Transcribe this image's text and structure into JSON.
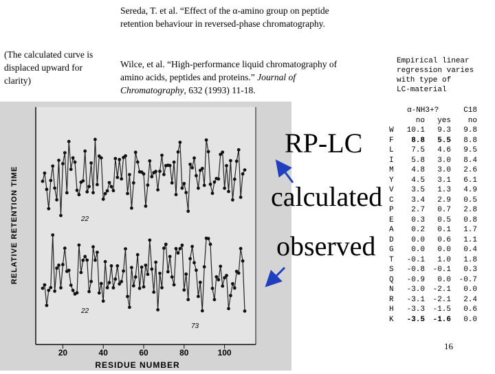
{
  "references": {
    "ref1": "Sereda, T. et al. “Effect of the α-amino group on peptide retention behaviour in reversed-phase chromatography.",
    "ref2_main": "Wilce, et al. “High-performance liquid chromatography of amino acids, peptides and proteins.” ",
    "ref2_journal": "Journal of Chromatography",
    "ref2_tail": ", 632 (1993) 11-18."
  },
  "note": "(The calculated curve is displaced upward for clarity)",
  "plot": {
    "ylabel": "RELATIVE RETENTION TIME",
    "xlabel": "RESIDUE NUMBER",
    "xticks": [
      "20",
      "40",
      "60",
      "80",
      "100"
    ],
    "curve_labels": {
      "upper": "22",
      "lower": "22",
      "trough": "73"
    },
    "background_color": "#d9d9d9"
  },
  "labels": {
    "rplc": "RP-LC",
    "calculated": "calculated",
    "observed": "observed",
    "arrow_color": "#1f3fbf"
  },
  "empirical_note": "Empirical linear\nregression varies\nwith type of\nLC-material",
  "table": {
    "header1": [
      "",
      "α-NH3+?",
      "",
      "C18"
    ],
    "header2": [
      "",
      "no",
      "yes",
      "no"
    ],
    "rows": [
      {
        "aa": "W",
        "no": "10.1",
        "yes": "9.3",
        "c18": "9.8",
        "bold": false
      },
      {
        "aa": "F",
        "no": "8.8",
        "yes": "5.5",
        "c18": "8.8",
        "bold": true
      },
      {
        "aa": "L",
        "no": "7.5",
        "yes": "4.6",
        "c18": "9.5",
        "bold": false
      },
      {
        "aa": "I",
        "no": "5.8",
        "yes": "3.0",
        "c18": "8.4",
        "bold": false
      },
      {
        "aa": "M",
        "no": "4.8",
        "yes": "3.0",
        "c18": "2.6",
        "bold": false
      },
      {
        "aa": "Y",
        "no": "4.5",
        "yes": "3.1",
        "c18": "6.1",
        "bold": false
      },
      {
        "aa": "V",
        "no": "3.5",
        "yes": "1.3",
        "c18": "4.9",
        "bold": false
      },
      {
        "aa": "C",
        "no": "3.4",
        "yes": "2.9",
        "c18": "0.5",
        "bold": false
      },
      {
        "aa": "P",
        "no": "2.7",
        "yes": "0.7",
        "c18": "2.8",
        "bold": false
      },
      {
        "aa": "E",
        "no": "0.3",
        "yes": "0.5",
        "c18": "0.8",
        "bold": false
      },
      {
        "aa": "A",
        "no": "0.2",
        "yes": "0.1",
        "c18": "1.7",
        "bold": false
      },
      {
        "aa": "D",
        "no": "0.0",
        "yes": "0.6",
        "c18": "1.1",
        "bold": false
      },
      {
        "aa": "G",
        "no": "0.0",
        "yes": "0.0",
        "c18": "0.4",
        "bold": false
      },
      {
        "aa": "T",
        "no": "-0.1",
        "yes": "1.0",
        "c18": "1.8",
        "bold": false
      },
      {
        "aa": "S",
        "no": "-0.8",
        "yes": "-0.1",
        "c18": "0.3",
        "bold": false
      },
      {
        "aa": "Q",
        "no": "-0.9",
        "yes": "0.0",
        "c18": "-0.7",
        "bold": false
      },
      {
        "aa": "N",
        "no": "-3.0",
        "yes": "-2.1",
        "c18": "0.0",
        "bold": false
      },
      {
        "aa": "R",
        "no": "-3.1",
        "yes": "-2.1",
        "c18": "2.4",
        "bold": false
      },
      {
        "aa": "H",
        "no": "-3.3",
        "yes": "-1.5",
        "c18": "0.6",
        "bold": false
      },
      {
        "aa": "K",
        "no": "-3.5",
        "yes": "-1.6",
        "c18": "0.0",
        "bold": true
      }
    ]
  },
  "page_number": "16"
}
